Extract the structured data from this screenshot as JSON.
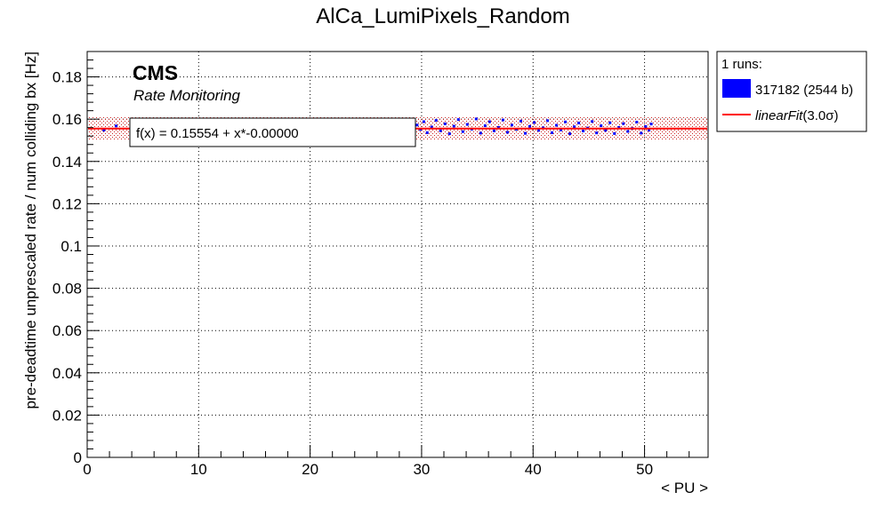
{
  "chart_data": {
    "type": "scatter",
    "title": "AlCa_LumiPixels_Random",
    "xlabel": "< PU >",
    "ylabel": "pre-deadtime unprescaled rate / num colliding bx [Hz]",
    "xlim": [
      0,
      55.7
    ],
    "ylim": [
      0,
      0.192
    ],
    "x_ticks": [
      "0",
      "10",
      "20",
      "30",
      "40",
      "50"
    ],
    "y_ticks": [
      "0",
      "0.02",
      "0.04",
      "0.06",
      "0.08",
      "0.1",
      "0.12",
      "0.14",
      "0.16",
      "0.18"
    ],
    "grid": true,
    "cms_label": "CMS",
    "cms_sublabel": "Rate Monitoring",
    "fit_label": "f(x) = 0.15554 + x*-0.00000",
    "fit": {
      "intercept": 0.15554,
      "slope": 0.0,
      "band_sigma": 3.0,
      "band_halfwidth": 0.0055,
      "color": "#ff0000"
    },
    "legend": {
      "placement": "right",
      "header": "1 runs:",
      "entries": [
        {
          "label": "317182 (2544 b)",
          "color": "#0000ff",
          "kind": "box"
        },
        {
          "label_prefix": "linearFit",
          "label_suffix": "(3.0σ)",
          "color": "#ff0000",
          "kind": "line"
        }
      ]
    },
    "series": [
      {
        "name": "317182 (2544 b)",
        "color": "#0000ff",
        "points": [
          [
            1.5,
            0.1548
          ],
          [
            2.6,
            0.1568
          ],
          [
            4.0,
            0.1582
          ],
          [
            29.6,
            0.1572
          ],
          [
            29.9,
            0.1551
          ],
          [
            30.2,
            0.1588
          ],
          [
            30.5,
            0.1536
          ],
          [
            30.9,
            0.1563
          ],
          [
            31.3,
            0.1594
          ],
          [
            31.7,
            0.1545
          ],
          [
            32.1,
            0.1578
          ],
          [
            32.5,
            0.1531
          ],
          [
            32.9,
            0.1567
          ],
          [
            33.3,
            0.1598
          ],
          [
            33.7,
            0.1541
          ],
          [
            34.1,
            0.1575
          ],
          [
            34.5,
            0.1553
          ],
          [
            34.9,
            0.1601
          ],
          [
            35.3,
            0.1534
          ],
          [
            35.7,
            0.1569
          ],
          [
            36.1,
            0.1588
          ],
          [
            36.5,
            0.1545
          ],
          [
            36.9,
            0.1561
          ],
          [
            37.3,
            0.1596
          ],
          [
            37.7,
            0.1538
          ],
          [
            38.1,
            0.1572
          ],
          [
            38.5,
            0.1552
          ],
          [
            38.9,
            0.1591
          ],
          [
            39.3,
            0.1533
          ],
          [
            39.7,
            0.1566
          ],
          [
            40.1,
            0.1584
          ],
          [
            40.5,
            0.1547
          ],
          [
            40.9,
            0.1559
          ],
          [
            41.3,
            0.1593
          ],
          [
            41.7,
            0.1536
          ],
          [
            42.1,
            0.1571
          ],
          [
            42.5,
            0.1549
          ],
          [
            42.9,
            0.1587
          ],
          [
            43.3,
            0.1531
          ],
          [
            43.7,
            0.1564
          ],
          [
            44.1,
            0.1582
          ],
          [
            44.5,
            0.1544
          ],
          [
            44.9,
            0.1558
          ],
          [
            45.3,
            0.1589
          ],
          [
            45.7,
            0.1535
          ],
          [
            46.1,
            0.1569
          ],
          [
            46.5,
            0.1547
          ],
          [
            46.9,
            0.1583
          ],
          [
            47.3,
            0.1532
          ],
          [
            47.7,
            0.1561
          ],
          [
            48.1,
            0.1579
          ],
          [
            48.5,
            0.1542
          ],
          [
            48.9,
            0.1556
          ],
          [
            49.3,
            0.1586
          ],
          [
            49.7,
            0.1534
          ],
          [
            50.1,
            0.1565
          ],
          [
            50.4,
            0.1548
          ],
          [
            50.6,
            0.1577
          ]
        ]
      }
    ]
  }
}
